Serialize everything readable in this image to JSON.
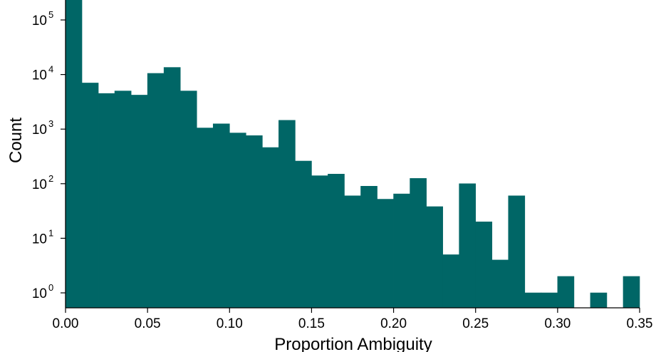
{
  "chart_data": {
    "type": "bar",
    "title": "",
    "xlabel": "Proportion Ambiguity",
    "ylabel": "Count",
    "y_scale": "log",
    "grid": false,
    "legend": "none",
    "xlim": [
      0.0,
      0.35
    ],
    "ylim": [
      0.55,
      250000
    ],
    "bar_color": "#006666",
    "x_ticks": [
      {
        "value": 0.0,
        "label": "0.00"
      },
      {
        "value": 0.05,
        "label": "0.05"
      },
      {
        "value": 0.1,
        "label": "0.10"
      },
      {
        "value": 0.15,
        "label": "0.15"
      },
      {
        "value": 0.2,
        "label": "0.20"
      },
      {
        "value": 0.25,
        "label": "0.25"
      },
      {
        "value": 0.3,
        "label": "0.30"
      },
      {
        "value": 0.35,
        "label": "0.35"
      }
    ],
    "y_ticks": [
      {
        "value": 1,
        "base": "10",
        "exp": "0"
      },
      {
        "value": 10,
        "base": "10",
        "exp": "1"
      },
      {
        "value": 100,
        "base": "10",
        "exp": "2"
      },
      {
        "value": 1000,
        "base": "10",
        "exp": "3"
      },
      {
        "value": 10000,
        "base": "10",
        "exp": "4"
      },
      {
        "value": 100000,
        "base": "10",
        "exp": "5"
      }
    ],
    "bin_width": 0.01,
    "bins": [
      {
        "x0": 0.0,
        "x1": 0.01,
        "count": 250000
      },
      {
        "x0": 0.01,
        "x1": 0.02,
        "count": 7000
      },
      {
        "x0": 0.02,
        "x1": 0.03,
        "count": 4500
      },
      {
        "x0": 0.03,
        "x1": 0.04,
        "count": 5000
      },
      {
        "x0": 0.04,
        "x1": 0.05,
        "count": 4200
      },
      {
        "x0": 0.05,
        "x1": 0.06,
        "count": 10500
      },
      {
        "x0": 0.06,
        "x1": 0.07,
        "count": 13500
      },
      {
        "x0": 0.07,
        "x1": 0.08,
        "count": 5000
      },
      {
        "x0": 0.08,
        "x1": 0.09,
        "count": 1050
      },
      {
        "x0": 0.09,
        "x1": 0.1,
        "count": 1250
      },
      {
        "x0": 0.1,
        "x1": 0.11,
        "count": 850
      },
      {
        "x0": 0.11,
        "x1": 0.12,
        "count": 760
      },
      {
        "x0": 0.12,
        "x1": 0.13,
        "count": 460
      },
      {
        "x0": 0.13,
        "x1": 0.14,
        "count": 1450
      },
      {
        "x0": 0.14,
        "x1": 0.15,
        "count": 260
      },
      {
        "x0": 0.15,
        "x1": 0.16,
        "count": 140
      },
      {
        "x0": 0.16,
        "x1": 0.17,
        "count": 150
      },
      {
        "x0": 0.17,
        "x1": 0.18,
        "count": 60
      },
      {
        "x0": 0.18,
        "x1": 0.19,
        "count": 90
      },
      {
        "x0": 0.19,
        "x1": 0.2,
        "count": 52
      },
      {
        "x0": 0.2,
        "x1": 0.21,
        "count": 65
      },
      {
        "x0": 0.21,
        "x1": 0.22,
        "count": 125
      },
      {
        "x0": 0.22,
        "x1": 0.23,
        "count": 38
      },
      {
        "x0": 0.23,
        "x1": 0.24,
        "count": 5
      },
      {
        "x0": 0.24,
        "x1": 0.25,
        "count": 100
      },
      {
        "x0": 0.25,
        "x1": 0.26,
        "count": 20
      },
      {
        "x0": 0.26,
        "x1": 0.27,
        "count": 4
      },
      {
        "x0": 0.27,
        "x1": 0.28,
        "count": 60
      },
      {
        "x0": 0.28,
        "x1": 0.29,
        "count": 1
      },
      {
        "x0": 0.29,
        "x1": 0.3,
        "count": 1
      },
      {
        "x0": 0.3,
        "x1": 0.31,
        "count": 2
      },
      {
        "x0": 0.32,
        "x1": 0.33,
        "count": 1
      },
      {
        "x0": 0.34,
        "x1": 0.35,
        "count": 2
      }
    ]
  }
}
